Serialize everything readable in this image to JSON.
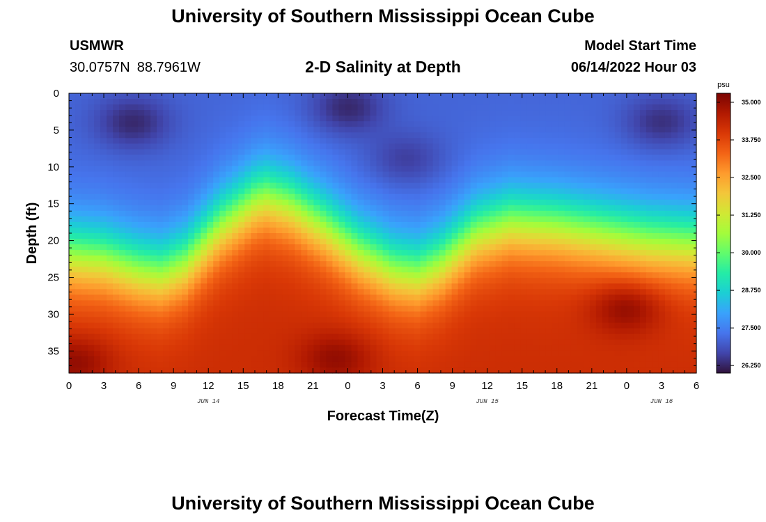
{
  "header": {
    "title": "University of Southern Mississippi Ocean Cube",
    "station_id": "USMWR",
    "lat": "30.0757N",
    "lon": "88.7961W",
    "subtitle": "2-D Salinity at Depth",
    "model_label": "Model Start Time",
    "model_time": "06/14/2022 Hour 03"
  },
  "footer": {
    "title": "University of Southern Mississippi Ocean Cube"
  },
  "chart_data": {
    "type": "heatmap",
    "xlabel": "Forecast Time(Z)",
    "ylabel": "Depth (ft)",
    "x_unit": "hours from 00Z JUN 14",
    "xlim": [
      0,
      54
    ],
    "ylim": [
      38,
      0
    ],
    "x_ticks": [
      {
        "h": 0,
        "label": "0"
      },
      {
        "h": 3,
        "label": "3"
      },
      {
        "h": 6,
        "label": "6"
      },
      {
        "h": 9,
        "label": "9"
      },
      {
        "h": 12,
        "label": "12"
      },
      {
        "h": 15,
        "label": "15"
      },
      {
        "h": 18,
        "label": "18"
      },
      {
        "h": 21,
        "label": "21"
      },
      {
        "h": 24,
        "label": "0"
      },
      {
        "h": 27,
        "label": "3"
      },
      {
        "h": 30,
        "label": "6"
      },
      {
        "h": 33,
        "label": "9"
      },
      {
        "h": 36,
        "label": "12"
      },
      {
        "h": 39,
        "label": "15"
      },
      {
        "h": 42,
        "label": "18"
      },
      {
        "h": 45,
        "label": "21"
      },
      {
        "h": 48,
        "label": "0"
      },
      {
        "h": 51,
        "label": "3"
      },
      {
        "h": 54,
        "label": "6"
      }
    ],
    "date_labels": [
      {
        "h": 12,
        "label": "JUN 14"
      },
      {
        "h": 36,
        "label": "JUN 15"
      },
      {
        "h": 51,
        "label": "JUN 16"
      }
    ],
    "y_ticks": [
      {
        "d": 0,
        "label": "0"
      },
      {
        "d": 5,
        "label": "5"
      },
      {
        "d": 10,
        "label": "10"
      },
      {
        "d": 15,
        "label": "15"
      },
      {
        "d": 20,
        "label": "20"
      },
      {
        "d": 25,
        "label": "25"
      },
      {
        "d": 30,
        "label": "30"
      },
      {
        "d": 35,
        "label": "35"
      }
    ],
    "surface_salinity_psu": 27.1,
    "bottom_salinity_psu": 34.2,
    "halocline_depth_ft": [
      {
        "h": 0,
        "d": 22
      },
      {
        "h": 3,
        "d": 22.5
      },
      {
        "h": 6,
        "d": 24
      },
      {
        "h": 8,
        "d": 24.5
      },
      {
        "h": 10,
        "d": 23
      },
      {
        "h": 13,
        "d": 18
      },
      {
        "h": 16,
        "d": 14.5
      },
      {
        "h": 17,
        "d": 14
      },
      {
        "h": 19,
        "d": 15
      },
      {
        "h": 22,
        "d": 18
      },
      {
        "h": 25,
        "d": 21.5
      },
      {
        "h": 28,
        "d": 24
      },
      {
        "h": 30,
        "d": 24.5
      },
      {
        "h": 32,
        "d": 23
      },
      {
        "h": 35,
        "d": 19
      },
      {
        "h": 38,
        "d": 17.5
      },
      {
        "h": 42,
        "d": 18
      },
      {
        "h": 46,
        "d": 19
      },
      {
        "h": 50,
        "d": 20
      },
      {
        "h": 54,
        "d": 20.5
      }
    ],
    "anomalies": [
      {
        "h": 5.5,
        "d": 4,
        "value": 26.3
      },
      {
        "h": 24,
        "d": 2,
        "value": 26.3
      },
      {
        "h": 29,
        "d": 9,
        "value": 26.6
      },
      {
        "h": 51,
        "d": 4,
        "value": 26.4
      },
      {
        "h": 0.5,
        "d": 36.5,
        "value": 35.0
      },
      {
        "h": 23,
        "d": 36,
        "value": 35.0
      },
      {
        "h": 48,
        "d": 29,
        "value": 34.9
      }
    ],
    "colorbar": {
      "unit": "psu",
      "min": 26.0,
      "max": 35.3,
      "ticks": [
        "35.000",
        "33.750",
        "32.500",
        "31.250",
        "30.000",
        "28.750",
        "27.500",
        "26.250"
      ],
      "tick_values": [
        35.0,
        33.75,
        32.5,
        31.25,
        30.0,
        28.75,
        27.5,
        26.25
      ],
      "colormap": [
        "#30123b",
        "#4145ab",
        "#4675ed",
        "#39a2fc",
        "#1bcfd4",
        "#24eca6",
        "#61fc6c",
        "#a4fc3b",
        "#d1e834",
        "#f3c63a",
        "#fe9b2d",
        "#f36315",
        "#d93806",
        "#b11901",
        "#7a0402"
      ]
    }
  }
}
